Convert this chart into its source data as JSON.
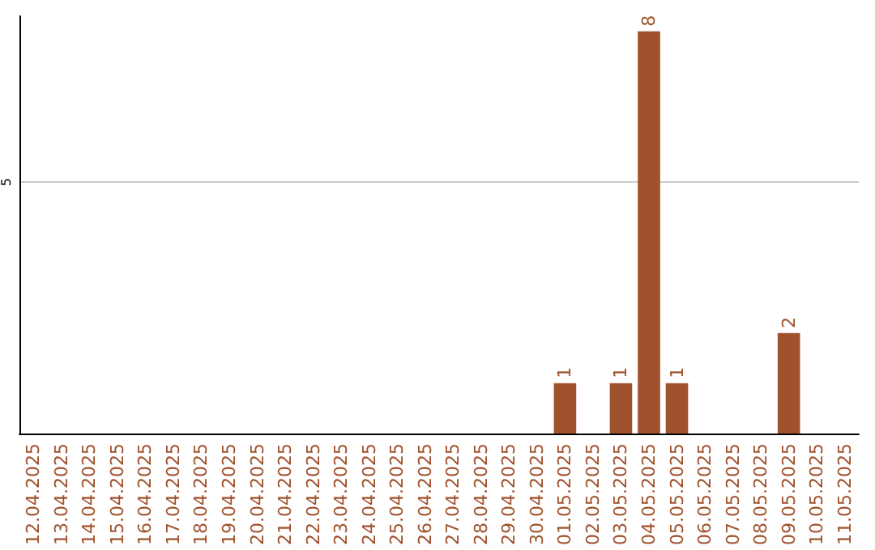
{
  "chart_data": {
    "type": "bar",
    "categories": [
      "12.04.2025",
      "13.04.2025",
      "14.04.2025",
      "15.04.2025",
      "16.04.2025",
      "17.04.2025",
      "18.04.2025",
      "19.04.2025",
      "20.04.2025",
      "21.04.2025",
      "22.04.2025",
      "23.04.2025",
      "24.04.2025",
      "25.04.2025",
      "26.04.2025",
      "27.04.2025",
      "28.04.2025",
      "29.04.2025",
      "30.04.2025",
      "01.05.2025",
      "02.05.2025",
      "03.05.2025",
      "04.05.2025",
      "05.05.2025",
      "06.05.2025",
      "07.05.2025",
      "08.05.2025",
      "09.05.2025",
      "10.05.2025",
      "11.05.2025"
    ],
    "values": [
      null,
      null,
      null,
      null,
      null,
      null,
      null,
      null,
      null,
      null,
      null,
      null,
      null,
      null,
      null,
      null,
      null,
      null,
      null,
      1,
      null,
      1,
      8,
      1,
      null,
      null,
      null,
      2,
      null,
      null
    ],
    "color": "#a0522d",
    "ylim": [
      0,
      8.3
    ],
    "yticks": [
      5
    ],
    "grid": "y",
    "data_labels": true
  }
}
